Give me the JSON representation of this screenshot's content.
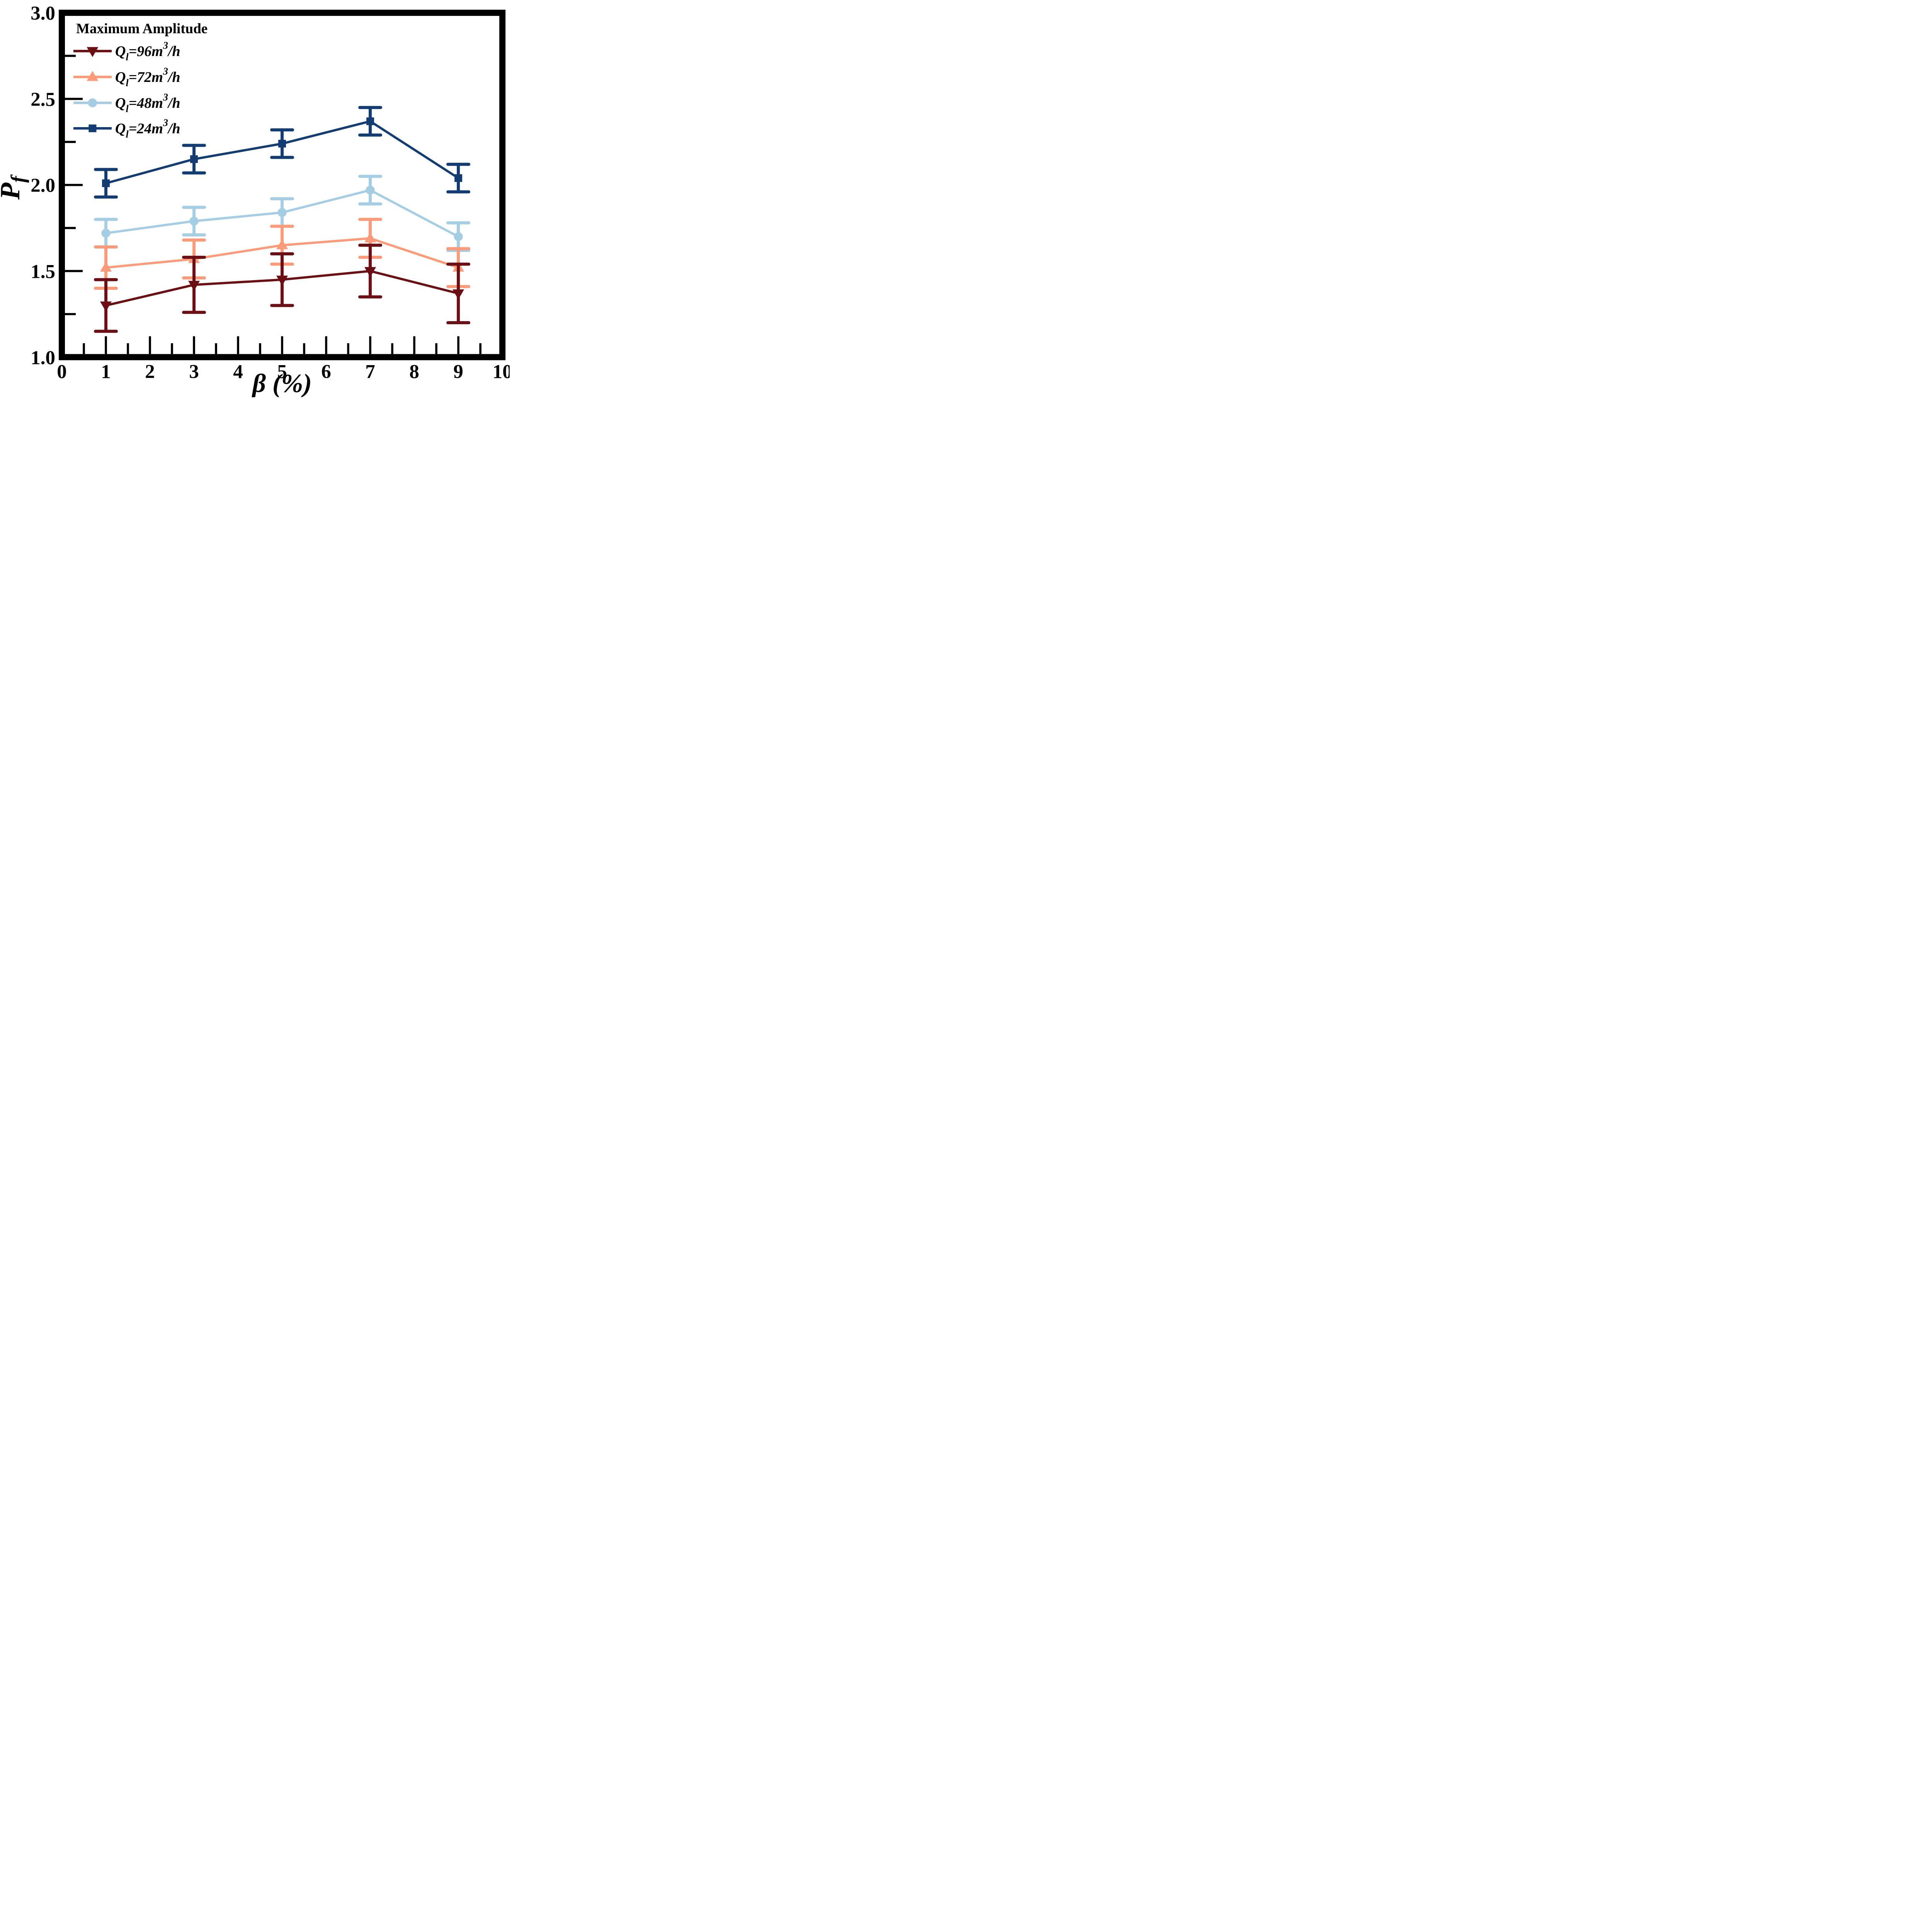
{
  "figure": {
    "background": "#ffffff",
    "frame_color": "#000000",
    "text_color": "#000000"
  },
  "chart_data": {
    "type": "line",
    "title": "",
    "xlabel_beta": "β",
    "xlabel_unit": "(%)",
    "ylabel_main": "P",
    "ylabel_sub": "f",
    "x": [
      1,
      3,
      5,
      7,
      9
    ],
    "xlim": [
      0,
      10
    ],
    "ylim": [
      1.0,
      3.0
    ],
    "x_tick_values": [
      0,
      1,
      2,
      3,
      4,
      5,
      6,
      7,
      8,
      9,
      10
    ],
    "x_tick_labels": [
      "0",
      "1",
      "2",
      "3",
      "4",
      "5",
      "6",
      "7",
      "8",
      "9",
      "10"
    ],
    "y_tick_values": [
      1.0,
      1.5,
      2.0,
      2.5,
      3.0
    ],
    "y_tick_labels": [
      "1.0",
      "1.5",
      "2.0",
      "2.5",
      "3.0"
    ],
    "x_minor_step": 0.5,
    "y_minor_step": 0.25,
    "grid": false,
    "legend": {
      "title": "Maximum Amplitude",
      "position": "upper-left"
    },
    "series": [
      {
        "name_q": "Q",
        "name_sub": "l",
        "name_mid": "=96m",
        "name_sup": "3",
        "name_tail": "/h",
        "label_plain": "Ql=96m3/h",
        "marker": "triangle-down",
        "color": "#6b0f14",
        "values": [
          1.3,
          1.42,
          1.45,
          1.5,
          1.37
        ],
        "errors": [
          0.15,
          0.16,
          0.15,
          0.15,
          0.17
        ]
      },
      {
        "name_q": "Q",
        "name_sub": "l",
        "name_mid": "=72m",
        "name_sup": "3",
        "name_tail": "/h",
        "label_plain": "Ql=72m3/h",
        "marker": "triangle-up",
        "color": "#fb9b7a",
        "values": [
          1.52,
          1.57,
          1.65,
          1.69,
          1.52
        ],
        "errors": [
          0.12,
          0.11,
          0.11,
          0.11,
          0.11
        ]
      },
      {
        "name_q": "Q",
        "name_sub": "l",
        "name_mid": "=48m",
        "name_sup": "3",
        "name_tail": "/h",
        "label_plain": "Ql=48m3/h",
        "marker": "circle",
        "color": "#a5cee5",
        "values": [
          1.72,
          1.79,
          1.84,
          1.97,
          1.7
        ],
        "errors": [
          0.08,
          0.08,
          0.08,
          0.08,
          0.08
        ]
      },
      {
        "name_q": "Q",
        "name_sub": "l",
        "name_mid": "=24m",
        "name_sup": "3",
        "name_tail": "/h",
        "label_plain": "Ql=24m3/h",
        "marker": "square",
        "color": "#133d72",
        "values": [
          2.01,
          2.15,
          2.24,
          2.37,
          2.04
        ],
        "errors": [
          0.08,
          0.08,
          0.08,
          0.08,
          0.08
        ]
      }
    ],
    "draw_order": [
      2,
      1,
      0,
      3
    ],
    "legend_order": [
      0,
      1,
      2,
      3
    ]
  }
}
